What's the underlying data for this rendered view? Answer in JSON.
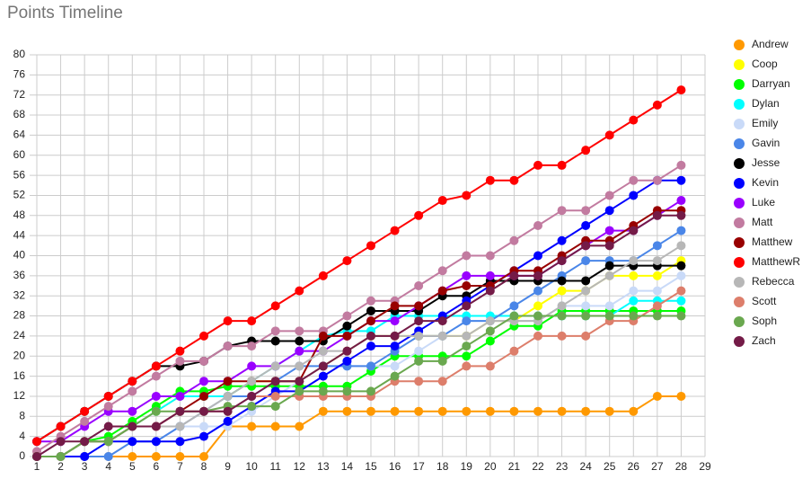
{
  "chart_data": {
    "type": "line",
    "title": "Points Timeline",
    "x": [
      1,
      2,
      3,
      4,
      5,
      6,
      7,
      8,
      9,
      10,
      11,
      12,
      13,
      14,
      15,
      16,
      17,
      18,
      19,
      20,
      21,
      22,
      23,
      24,
      25,
      26,
      27,
      28
    ],
    "xlim": [
      1,
      29
    ],
    "xticks": [
      1,
      2,
      3,
      4,
      5,
      6,
      7,
      8,
      9,
      10,
      11,
      12,
      13,
      14,
      15,
      16,
      17,
      18,
      19,
      20,
      21,
      22,
      23,
      24,
      25,
      26,
      27,
      28,
      29
    ],
    "ylim": [
      0,
      80
    ],
    "yticks": [
      0,
      4,
      8,
      12,
      16,
      20,
      24,
      28,
      32,
      36,
      40,
      44,
      48,
      52,
      56,
      60,
      64,
      68,
      72,
      76,
      80
    ],
    "grid": true,
    "legend": "right",
    "series": [
      {
        "name": "Andrew",
        "color": "#ff9900",
        "values": [
          0,
          0,
          0,
          0,
          0,
          0,
          0,
          0,
          6,
          6,
          6,
          6,
          9,
          9,
          9,
          9,
          9,
          9,
          9,
          9,
          9,
          9,
          9,
          9,
          9,
          9,
          12,
          12
        ]
      },
      {
        "name": "Coop",
        "color": "#ffff00",
        "values": [
          0,
          0,
          3,
          3,
          6,
          9,
          12,
          12,
          12,
          15,
          15,
          15,
          18,
          21,
          24,
          24,
          24,
          24,
          24,
          27,
          27,
          30,
          33,
          33,
          36,
          36,
          36,
          39
        ]
      },
      {
        "name": "Darryan",
        "color": "#00ff00",
        "values": [
          0,
          0,
          3,
          4,
          7,
          10,
          13,
          13,
          14,
          14,
          14,
          14,
          14,
          14,
          17,
          20,
          20,
          20,
          20,
          23,
          26,
          26,
          29,
          29,
          29,
          29,
          29,
          29
        ]
      },
      {
        "name": "Dylan",
        "color": "#00ffff",
        "values": [
          0,
          0,
          3,
          3,
          6,
          9,
          12,
          12,
          12,
          15,
          18,
          21,
          24,
          25,
          25,
          28,
          28,
          28,
          28,
          28,
          28,
          28,
          28,
          28,
          28,
          31,
          31,
          31
        ]
      },
      {
        "name": "Emily",
        "color": "#c9daf8",
        "values": [
          0,
          0,
          0,
          0,
          3,
          3,
          6,
          6,
          6,
          9,
          12,
          15,
          18,
          18,
          18,
          18,
          21,
          24,
          27,
          27,
          27,
          27,
          30,
          30,
          30,
          33,
          33,
          36
        ]
      },
      {
        "name": "Gavin",
        "color": "#4a86e8",
        "values": [
          0,
          0,
          0,
          0,
          3,
          3,
          6,
          9,
          12,
          12,
          15,
          18,
          18,
          18,
          18,
          21,
          24,
          24,
          27,
          27,
          30,
          33,
          36,
          39,
          39,
          39,
          42,
          45
        ]
      },
      {
        "name": "Jesse",
        "color": "#000000",
        "values": [
          3,
          6,
          9,
          12,
          15,
          18,
          18,
          19,
          22,
          23,
          23,
          23,
          23,
          26,
          29,
          29,
          29,
          32,
          32,
          35,
          35,
          35,
          35,
          35,
          38,
          38,
          38,
          38
        ]
      },
      {
        "name": "Kevin",
        "color": "#0000ff",
        "values": [
          0,
          0,
          0,
          3,
          3,
          3,
          3,
          4,
          7,
          10,
          13,
          13,
          16,
          19,
          22,
          22,
          25,
          28,
          31,
          34,
          37,
          40,
          43,
          46,
          49,
          52,
          55,
          55
        ]
      },
      {
        "name": "Luke",
        "color": "#9900ff",
        "values": [
          3,
          3,
          6,
          9,
          9,
          12,
          12,
          15,
          15,
          18,
          18,
          21,
          21,
          24,
          27,
          27,
          30,
          33,
          36,
          36,
          36,
          36,
          39,
          42,
          45,
          45,
          48,
          51
        ]
      },
      {
        "name": "Matt",
        "color": "#c27ba0",
        "values": [
          1,
          4,
          7,
          10,
          13,
          16,
          19,
          19,
          22,
          22,
          25,
          25,
          25,
          28,
          31,
          31,
          34,
          37,
          40,
          40,
          43,
          46,
          49,
          49,
          52,
          55,
          55,
          58
        ]
      },
      {
        "name": "Matthew",
        "color": "#980000",
        "values": [
          0,
          0,
          3,
          3,
          6,
          6,
          9,
          12,
          15,
          15,
          15,
          15,
          24,
          24,
          27,
          30,
          30,
          33,
          34,
          34,
          37,
          37,
          40,
          43,
          43,
          46,
          49,
          49
        ]
      },
      {
        "name": "MatthewR",
        "color": "#ff0000",
        "values": [
          3,
          6,
          9,
          12,
          15,
          18,
          21,
          24,
          27,
          27,
          30,
          33,
          36,
          39,
          42,
          45,
          48,
          51,
          52,
          55,
          55,
          58,
          58,
          61,
          64,
          67,
          70,
          73
        ]
      },
      {
        "name": "Rebecca",
        "color": "#b7b7b7",
        "values": [
          0,
          0,
          3,
          3,
          6,
          6,
          6,
          9,
          12,
          15,
          18,
          18,
          21,
          21,
          24,
          24,
          24,
          24,
          24,
          27,
          27,
          27,
          30,
          33,
          36,
          39,
          39,
          42
        ]
      },
      {
        "name": "Scott",
        "color": "#dd7e6b",
        "values": [
          0,
          0,
          3,
          3,
          6,
          6,
          9,
          9,
          9,
          12,
          12,
          12,
          12,
          12,
          12,
          15,
          15,
          15,
          18,
          18,
          21,
          24,
          24,
          24,
          27,
          27,
          30,
          33
        ]
      },
      {
        "name": "Soph",
        "color": "#6aa84f",
        "values": [
          0,
          0,
          3,
          3,
          6,
          9,
          9,
          9,
          10,
          10,
          10,
          13,
          13,
          13,
          13,
          16,
          19,
          19,
          22,
          25,
          28,
          28,
          28,
          28,
          28,
          28,
          28,
          28
        ]
      },
      {
        "name": "Zach",
        "color": "#741b47",
        "values": [
          0,
          3,
          3,
          6,
          6,
          6,
          9,
          9,
          9,
          12,
          15,
          15,
          18,
          21,
          24,
          24,
          27,
          27,
          30,
          33,
          36,
          36,
          39,
          42,
          42,
          45,
          48,
          48
        ]
      }
    ]
  }
}
